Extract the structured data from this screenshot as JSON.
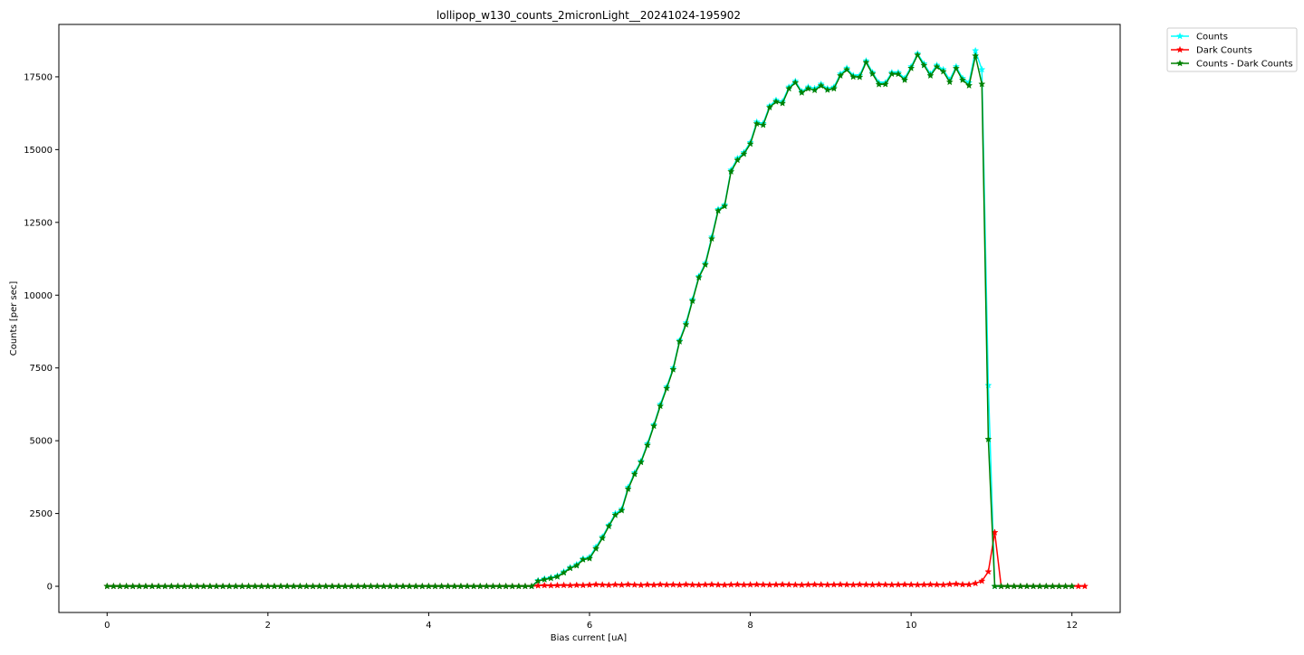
{
  "chart_data": {
    "type": "line",
    "title": "lollipop_w130_counts_2micronLight__20241024-195902",
    "xlabel": "Bias current [uA]",
    "ylabel": "Counts [per sec]",
    "xlim": [
      -0.6,
      12.6
    ],
    "ylim": [
      -900,
      19300
    ],
    "xticks": [
      0,
      2,
      4,
      6,
      8,
      10,
      12
    ],
    "yticks": [
      0,
      2500,
      5000,
      7500,
      10000,
      12500,
      15000,
      17500
    ],
    "grid": false,
    "legend_position": "outside-top-right",
    "x_start": 0,
    "x_step": 0.08,
    "series": [
      {
        "name": "Counts",
        "color": "#00ffff",
        "marker": "star",
        "values": [
          0,
          0,
          0,
          0,
          0,
          0,
          0,
          0,
          0,
          0,
          0,
          0,
          0,
          0,
          0,
          0,
          0,
          0,
          0,
          0,
          0,
          0,
          0,
          0,
          0,
          0,
          0,
          0,
          0,
          0,
          0,
          0,
          0,
          0,
          0,
          0,
          0,
          0,
          0,
          0,
          0,
          0,
          0,
          0,
          0,
          0,
          0,
          0,
          0,
          0,
          0,
          0,
          0,
          0,
          0,
          0,
          0,
          0,
          0,
          0,
          0,
          0,
          0,
          0,
          0,
          0,
          0,
          200,
          260,
          300,
          360,
          500,
          650,
          750,
          950,
          1000,
          1350,
          1700,
          2100,
          2500,
          2650,
          3400,
          3900,
          4300,
          4900,
          5550,
          6250,
          6850,
          7500,
          8450,
          9050,
          9850,
          10650,
          11100,
          12000,
          12950,
          13100,
          14300,
          14700,
          14900,
          15250,
          15950,
          15900,
          16500,
          16700,
          16650,
          17150,
          17350,
          17000,
          17150,
          17100,
          17250,
          17100,
          17150,
          17600,
          17800,
          17550,
          17550,
          18050,
          17650,
          17300,
          17300,
          17650,
          17650,
          17450,
          17850,
          18300,
          17950,
          17600,
          17900,
          17750,
          17400,
          17850,
          17450,
          17300,
          18400,
          17750,
          6900,
          0,
          0,
          0,
          0,
          0,
          0,
          0,
          0,
          0,
          0,
          0,
          0,
          0
        ]
      },
      {
        "name": "Dark Counts",
        "color": "#ff0000",
        "marker": "star",
        "values": [
          0,
          0,
          0,
          0,
          0,
          0,
          0,
          0,
          0,
          0,
          0,
          0,
          0,
          0,
          0,
          0,
          0,
          0,
          0,
          0,
          0,
          0,
          0,
          0,
          0,
          0,
          0,
          0,
          0,
          0,
          0,
          0,
          0,
          0,
          0,
          0,
          0,
          0,
          0,
          0,
          0,
          0,
          0,
          0,
          0,
          0,
          0,
          0,
          0,
          0,
          0,
          0,
          0,
          0,
          0,
          0,
          0,
          0,
          0,
          0,
          0,
          0,
          0,
          0,
          0,
          0,
          0,
          20,
          30,
          25,
          30,
          35,
          30,
          40,
          35,
          45,
          60,
          50,
          40,
          55,
          45,
          60,
          50,
          40,
          55,
          45,
          60,
          50,
          55,
          45,
          60,
          50,
          45,
          55,
          60,
          50,
          45,
          55,
          60,
          50,
          55,
          60,
          55,
          50,
          55,
          60,
          55,
          50,
          45,
          55,
          60,
          55,
          50,
          55,
          60,
          55,
          50,
          60,
          55,
          50,
          60,
          55,
          50,
          55,
          60,
          55,
          50,
          55,
          60,
          55,
          50,
          70,
          80,
          60,
          60,
          100,
          180,
          500,
          1850,
          0,
          0,
          0,
          0,
          0,
          0,
          0,
          0,
          0,
          0,
          0,
          0,
          0,
          0
        ]
      },
      {
        "name": "Counts - Dark Counts",
        "color": "#008000",
        "marker": "star",
        "values": [
          0,
          0,
          0,
          0,
          0,
          0,
          0,
          0,
          0,
          0,
          0,
          0,
          0,
          0,
          0,
          0,
          0,
          0,
          0,
          0,
          0,
          0,
          0,
          0,
          0,
          0,
          0,
          0,
          0,
          0,
          0,
          0,
          0,
          0,
          0,
          0,
          0,
          0,
          0,
          0,
          0,
          0,
          0,
          0,
          0,
          0,
          0,
          0,
          0,
          0,
          0,
          0,
          0,
          0,
          0,
          0,
          0,
          0,
          0,
          0,
          0,
          0,
          0,
          0,
          0,
          0,
          0,
          180,
          230,
          275,
          330,
          465,
          620,
          710,
          915,
          955,
          1290,
          1650,
          2060,
          2445,
          2605,
          3340,
          3850,
          4260,
          4845,
          5505,
          6190,
          6800,
          7445,
          8405,
          8990,
          9800,
          10605,
          11045,
          11940,
          12900,
          13055,
          14245,
          14640,
          14850,
          15195,
          15890,
          15845,
          16450,
          16645,
          16590,
          17095,
          17300,
          16955,
          17095,
          17040,
          17195,
          17050,
          17095,
          17540,
          17745,
          17500,
          17490,
          17995,
          17600,
          17240,
          17245,
          17600,
          17595,
          17390,
          17795,
          18250,
          17895,
          17540,
          17845,
          17680,
          17320,
          17790,
          17390,
          17200,
          18220,
          17250,
          5050,
          0,
          0,
          0,
          0,
          0,
          0,
          0,
          0,
          0,
          0,
          0,
          0,
          0
        ]
      }
    ]
  }
}
